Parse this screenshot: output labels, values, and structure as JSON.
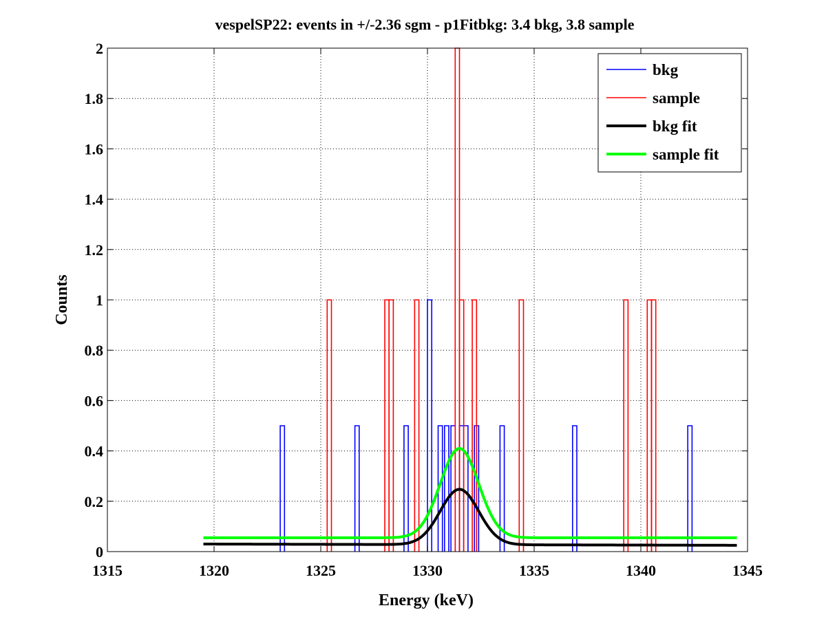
{
  "chart_data": {
    "type": "line",
    "title": "vespelSP22: events in +/-2.36 sgm - p1Fitbkg: 3.4 bkg, 3.8 sample",
    "xlabel": "Energy (keV)",
    "ylabel": "Counts",
    "xlim": [
      1315,
      1345
    ],
    "ylim": [
      0,
      2
    ],
    "grid": true,
    "legend_position": "top-right",
    "x_ticks": [
      "1315",
      "1320",
      "1325",
      "1330",
      "1335",
      "1340",
      "1345"
    ],
    "y_ticks": [
      "0",
      "0.2",
      "0.4",
      "0.6",
      "0.8",
      "1",
      "1.2",
      "1.4",
      "1.6",
      "1.8",
      "2"
    ],
    "bin_width": 0.2,
    "series": [
      {
        "name": "bkg",
        "kind": "histogram",
        "color": "#0000ff",
        "bin_starts": [
          1323.1,
          1326.6,
          1328.9,
          1330.0,
          1330.5,
          1330.8,
          1331.1,
          1331.5,
          1331.7,
          1332.2,
          1333.4,
          1336.8,
          1342.2
        ],
        "values": [
          0.5,
          0.5,
          0.5,
          1.0,
          0.5,
          0.5,
          0.5,
          0.5,
          0.5,
          0.5,
          0.5,
          0.5,
          0.5
        ]
      },
      {
        "name": "sample",
        "kind": "histogram",
        "color": "#ff0000",
        "bin_starts": [
          1325.3,
          1328.0,
          1328.2,
          1329.4,
          1331.3,
          1331.5,
          1332.1,
          1334.3,
          1339.2,
          1340.3,
          1340.5
        ],
        "values": [
          1,
          1,
          1,
          1,
          2,
          1,
          1,
          1,
          1,
          1,
          1
        ]
      },
      {
        "name": "bkg fit",
        "kind": "fit",
        "color": "#000000",
        "x_range": [
          1319.5,
          1344.5
        ],
        "baseline_start": 0.03,
        "baseline_end": 0.025,
        "peak_center": 1331.5,
        "peak_height": 0.22,
        "peak_sigma": 0.9
      },
      {
        "name": "sample fit",
        "kind": "fit",
        "color": "#00ff00",
        "x_range": [
          1319.5,
          1344.5
        ],
        "baseline_start": 0.055,
        "baseline_end": 0.055,
        "peak_center": 1331.5,
        "peak_height": 0.355,
        "peak_sigma": 0.9
      }
    ]
  }
}
